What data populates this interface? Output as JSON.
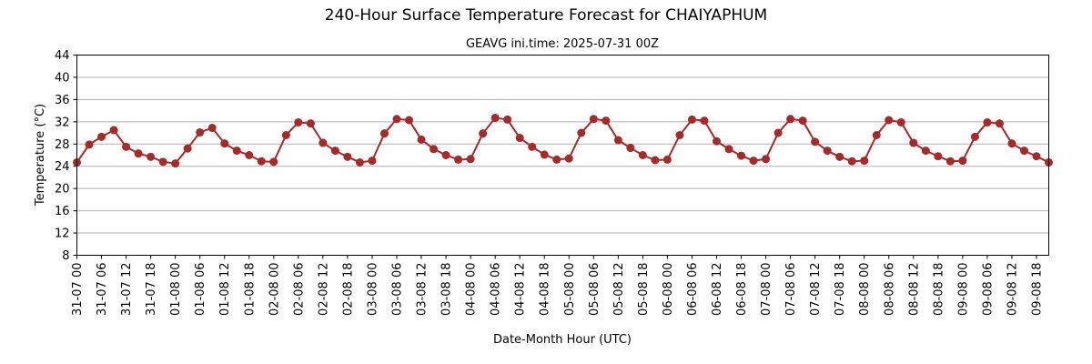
{
  "chart_data": {
    "type": "line",
    "title": "240-Hour Surface Temperature Forecast for CHAIYAPHUM",
    "subtitle": "GEAVG ini.time: 2025-07-31 00Z",
    "xlabel": "Date-Month Hour (UTC)",
    "ylabel": "Temperature (°C)",
    "ylim": [
      8,
      44
    ],
    "yticks": [
      8,
      12,
      16,
      20,
      24,
      28,
      32,
      36,
      40,
      44
    ],
    "grid": "horizontal",
    "line_color": "#a52a2a",
    "x_step_hours": 3,
    "xticks": [
      "31-07 00",
      "31-07 06",
      "31-07 12",
      "31-07 18",
      "01-08 00",
      "01-08 06",
      "01-08 12",
      "01-08 18",
      "02-08 00",
      "02-08 06",
      "02-08 12",
      "02-08 18",
      "03-08 00",
      "03-08 06",
      "03-08 12",
      "03-08 18",
      "04-08 00",
      "04-08 06",
      "04-08 12",
      "04-08 18",
      "05-08 00",
      "05-08 06",
      "05-08 12",
      "05-08 18",
      "06-08 00",
      "06-08 06",
      "06-08 12",
      "06-08 18",
      "07-08 00",
      "07-08 06",
      "07-08 12",
      "07-08 18",
      "08-08 00",
      "08-08 06",
      "08-08 12",
      "08-08 18",
      "09-08 00",
      "09-08 06",
      "09-08 12",
      "09-08 18"
    ],
    "series": [
      {
        "values": [
          24.7,
          27.9,
          29.3,
          30.5,
          27.5,
          26.3,
          25.7,
          24.8,
          24.5,
          27.2,
          30.1,
          30.9,
          28.1,
          26.8,
          26.0,
          24.9,
          24.8,
          29.6,
          31.9,
          31.7,
          28.2,
          26.8,
          25.7,
          24.7,
          25.0,
          29.9,
          32.5,
          32.3,
          28.8,
          27.1,
          26.0,
          25.2,
          25.3,
          29.9,
          32.7,
          32.4,
          29.1,
          27.5,
          26.1,
          25.2,
          25.4,
          30.0,
          32.5,
          32.2,
          28.7,
          27.3,
          26.0,
          25.1,
          25.2,
          29.6,
          32.4,
          32.2,
          28.5,
          27.1,
          25.9,
          25.0,
          25.3,
          30.0,
          32.5,
          32.2,
          28.4,
          26.8,
          25.7,
          24.9,
          25.0,
          29.6,
          32.3,
          31.9,
          28.2,
          26.8,
          25.8,
          24.9,
          25.0,
          29.3,
          31.9,
          31.7,
          28.1,
          26.8,
          25.8,
          24.7
        ]
      }
    ]
  }
}
